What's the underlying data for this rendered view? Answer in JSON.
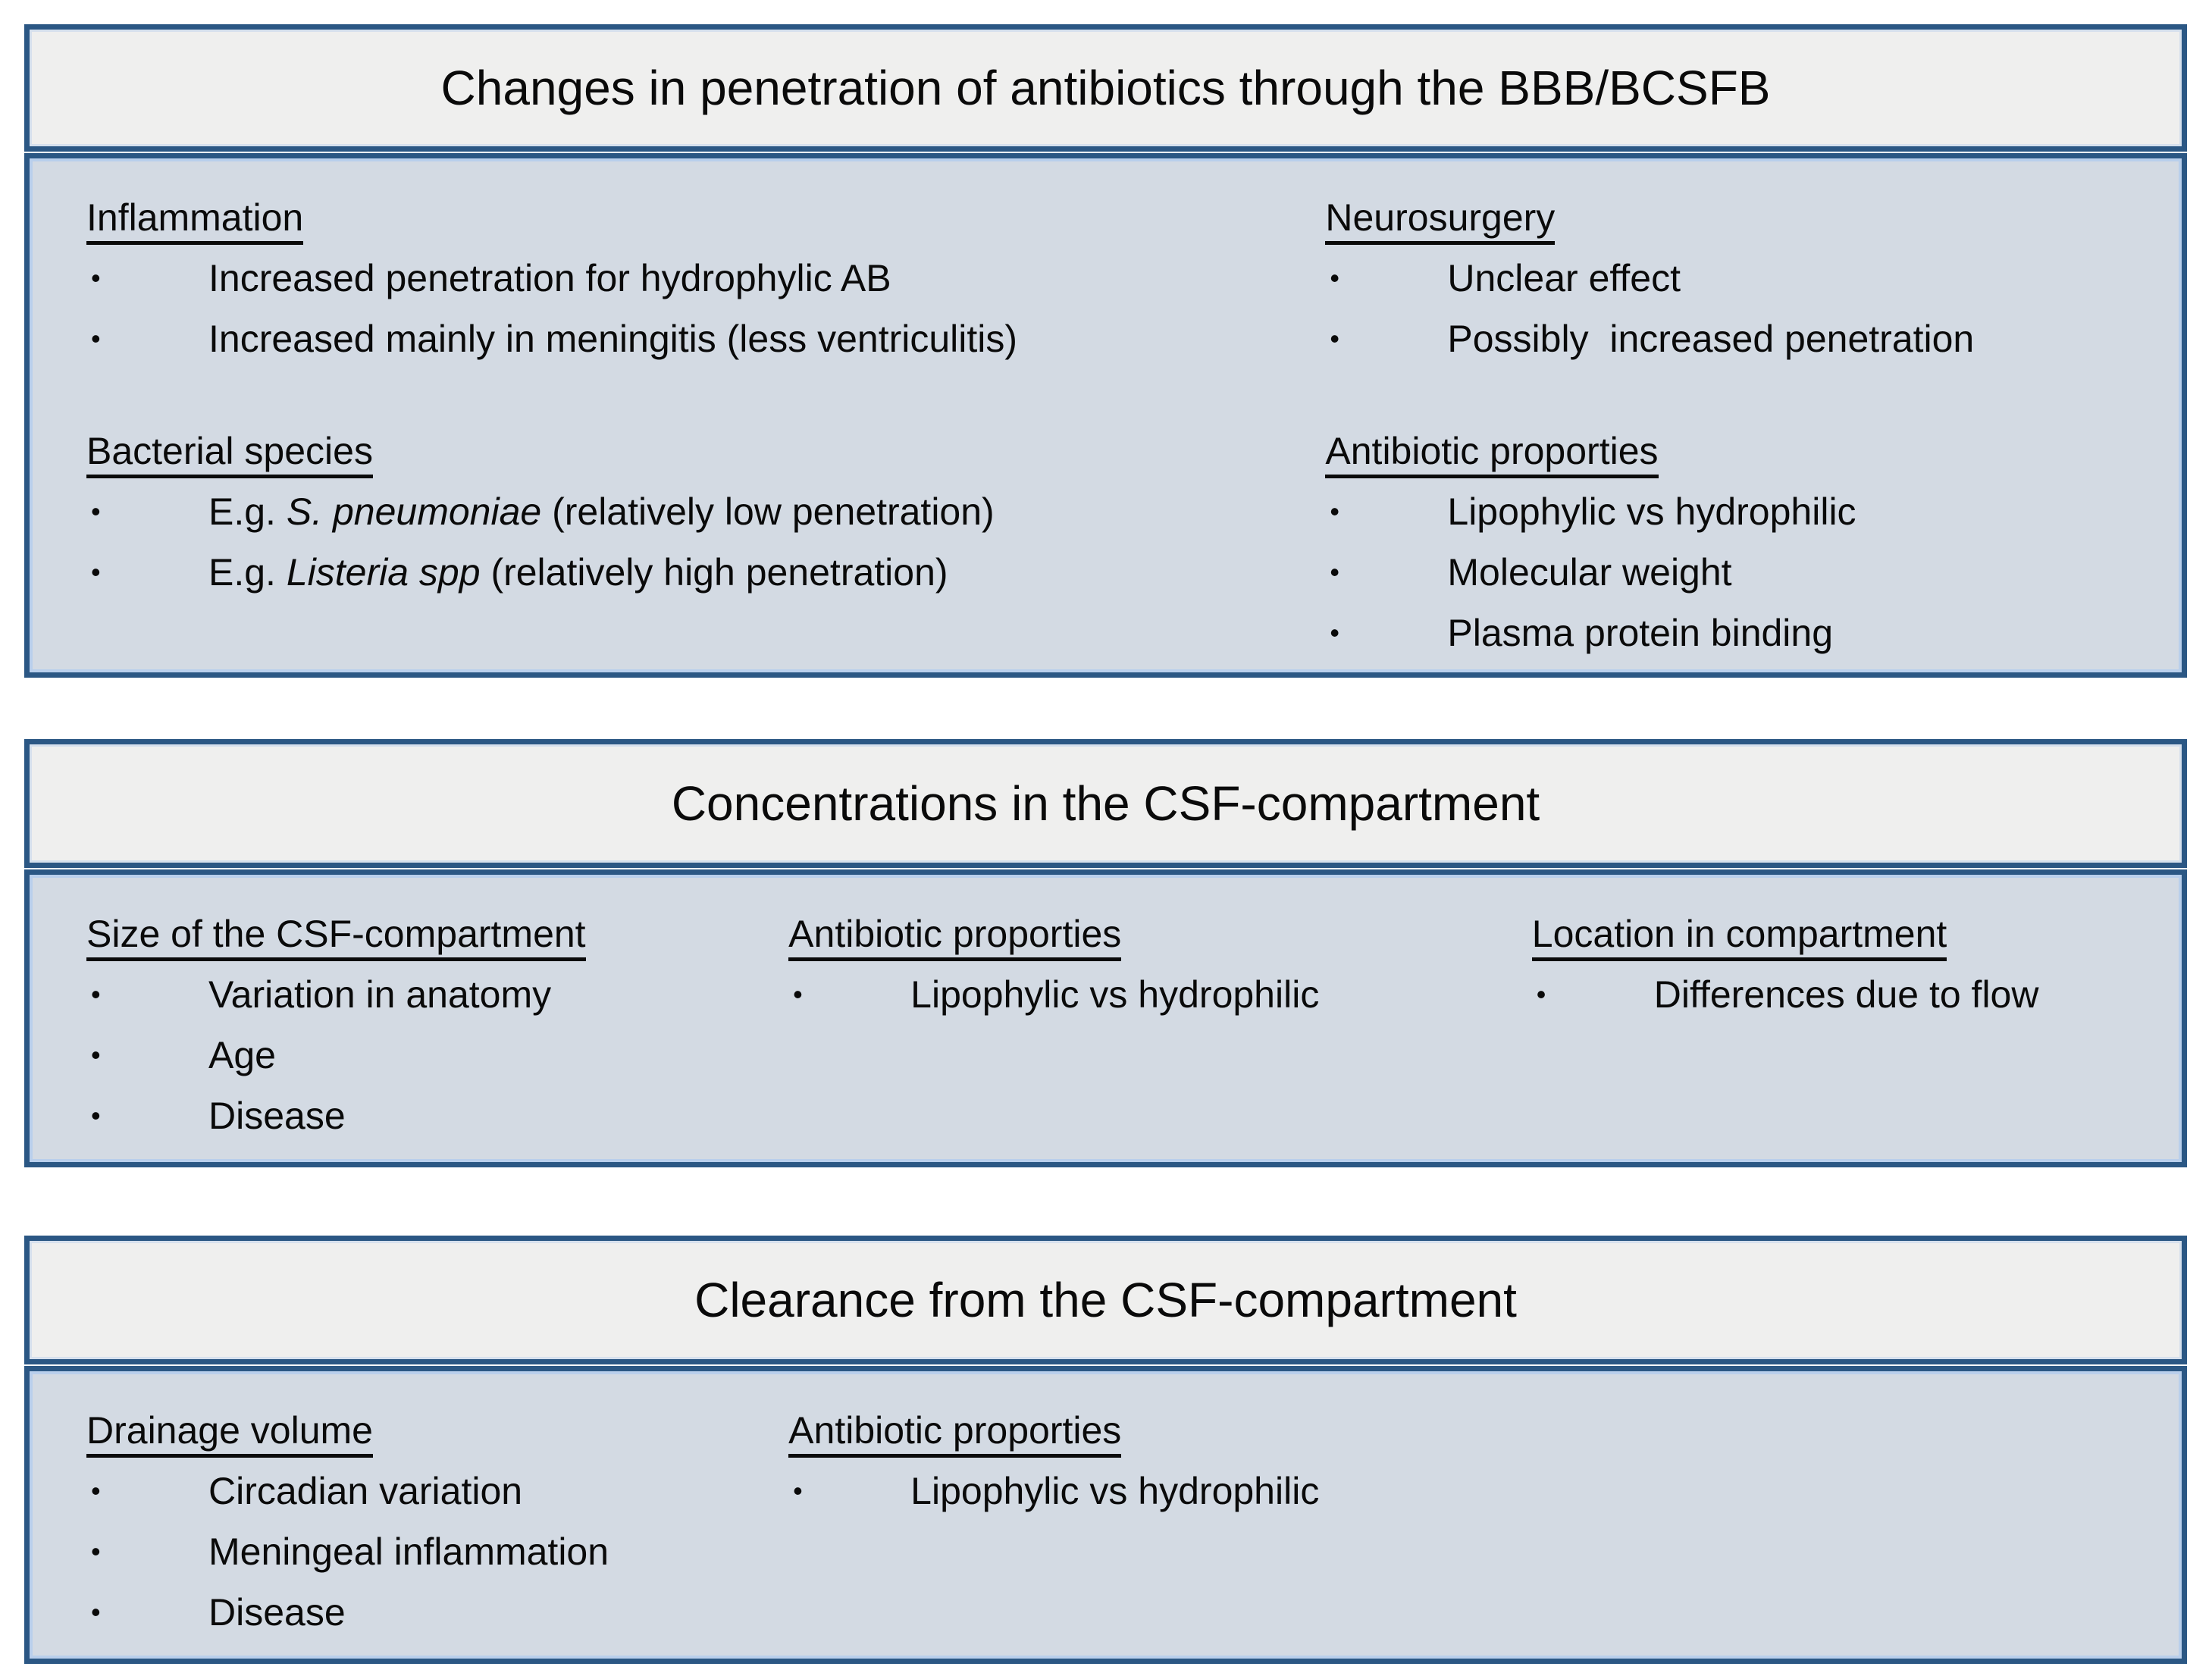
{
  "bullet": "•",
  "colors": {
    "border": "#2b5784",
    "inner_stroke": "#b9cfec",
    "title_background": "#efefee",
    "body_background": "#d3dae3",
    "text": "#0a0a0a",
    "page_background": "#ffffff"
  },
  "panels": [
    {
      "title": "Changes in penetration of antibiotics through the BBB/BCSFB",
      "columns": [
        {
          "sections": [
            {
              "heading": "Inflammation",
              "items": [
                {
                  "text": "Increased penetration for hydrophylic AB"
                },
                {
                  "text": "Increased mainly in meningitis (less ventriculitis)"
                }
              ]
            },
            {
              "heading": "Bacterial species",
              "items": [
                {
                  "prefix": "E.g. ",
                  "italic": "S. pneumoniae",
                  "suffix": " (relatively low penetration)"
                },
                {
                  "prefix": "E.g. ",
                  "italic": "Listeria spp",
                  "suffix": " (relatively high penetration)"
                }
              ]
            }
          ]
        },
        {
          "sections": [
            {
              "heading": "Neurosurgery",
              "items": [
                {
                  "text": "Unclear effect"
                },
                {
                  "text": "Possibly  increased penetration"
                }
              ]
            },
            {
              "heading": "Antibiotic proporties",
              "items": [
                {
                  "text": "Lipophylic vs hydrophilic"
                },
                {
                  "text": "Molecular weight"
                },
                {
                  "text": "Plasma protein binding"
                }
              ]
            }
          ]
        }
      ]
    },
    {
      "title": "Concentrations in the CSF-compartment",
      "columns": [
        {
          "sections": [
            {
              "heading": "Size of the CSF-compartment",
              "items": [
                {
                  "text": "Variation in anatomy"
                },
                {
                  "text": "Age"
                },
                {
                  "text": "Disease"
                }
              ]
            }
          ]
        },
        {
          "sections": [
            {
              "heading": "Antibiotic proporties",
              "items": [
                {
                  "text": "Lipophylic vs hydrophilic"
                }
              ]
            }
          ]
        },
        {
          "sections": [
            {
              "heading": "Location in compartment",
              "items": [
                {
                  "text": "Differences due to flow"
                }
              ]
            }
          ]
        }
      ]
    },
    {
      "title": "Clearance from the CSF-compartment",
      "columns": [
        {
          "sections": [
            {
              "heading": "Drainage volume",
              "items": [
                {
                  "text": "Circadian variation"
                },
                {
                  "text": "Meningeal inflammation"
                },
                {
                  "text": "Disease"
                }
              ]
            }
          ]
        },
        {
          "sections": [
            {
              "heading": "Antibiotic proporties",
              "items": [
                {
                  "text": "Lipophylic vs hydrophilic"
                }
              ]
            }
          ]
        }
      ]
    }
  ]
}
